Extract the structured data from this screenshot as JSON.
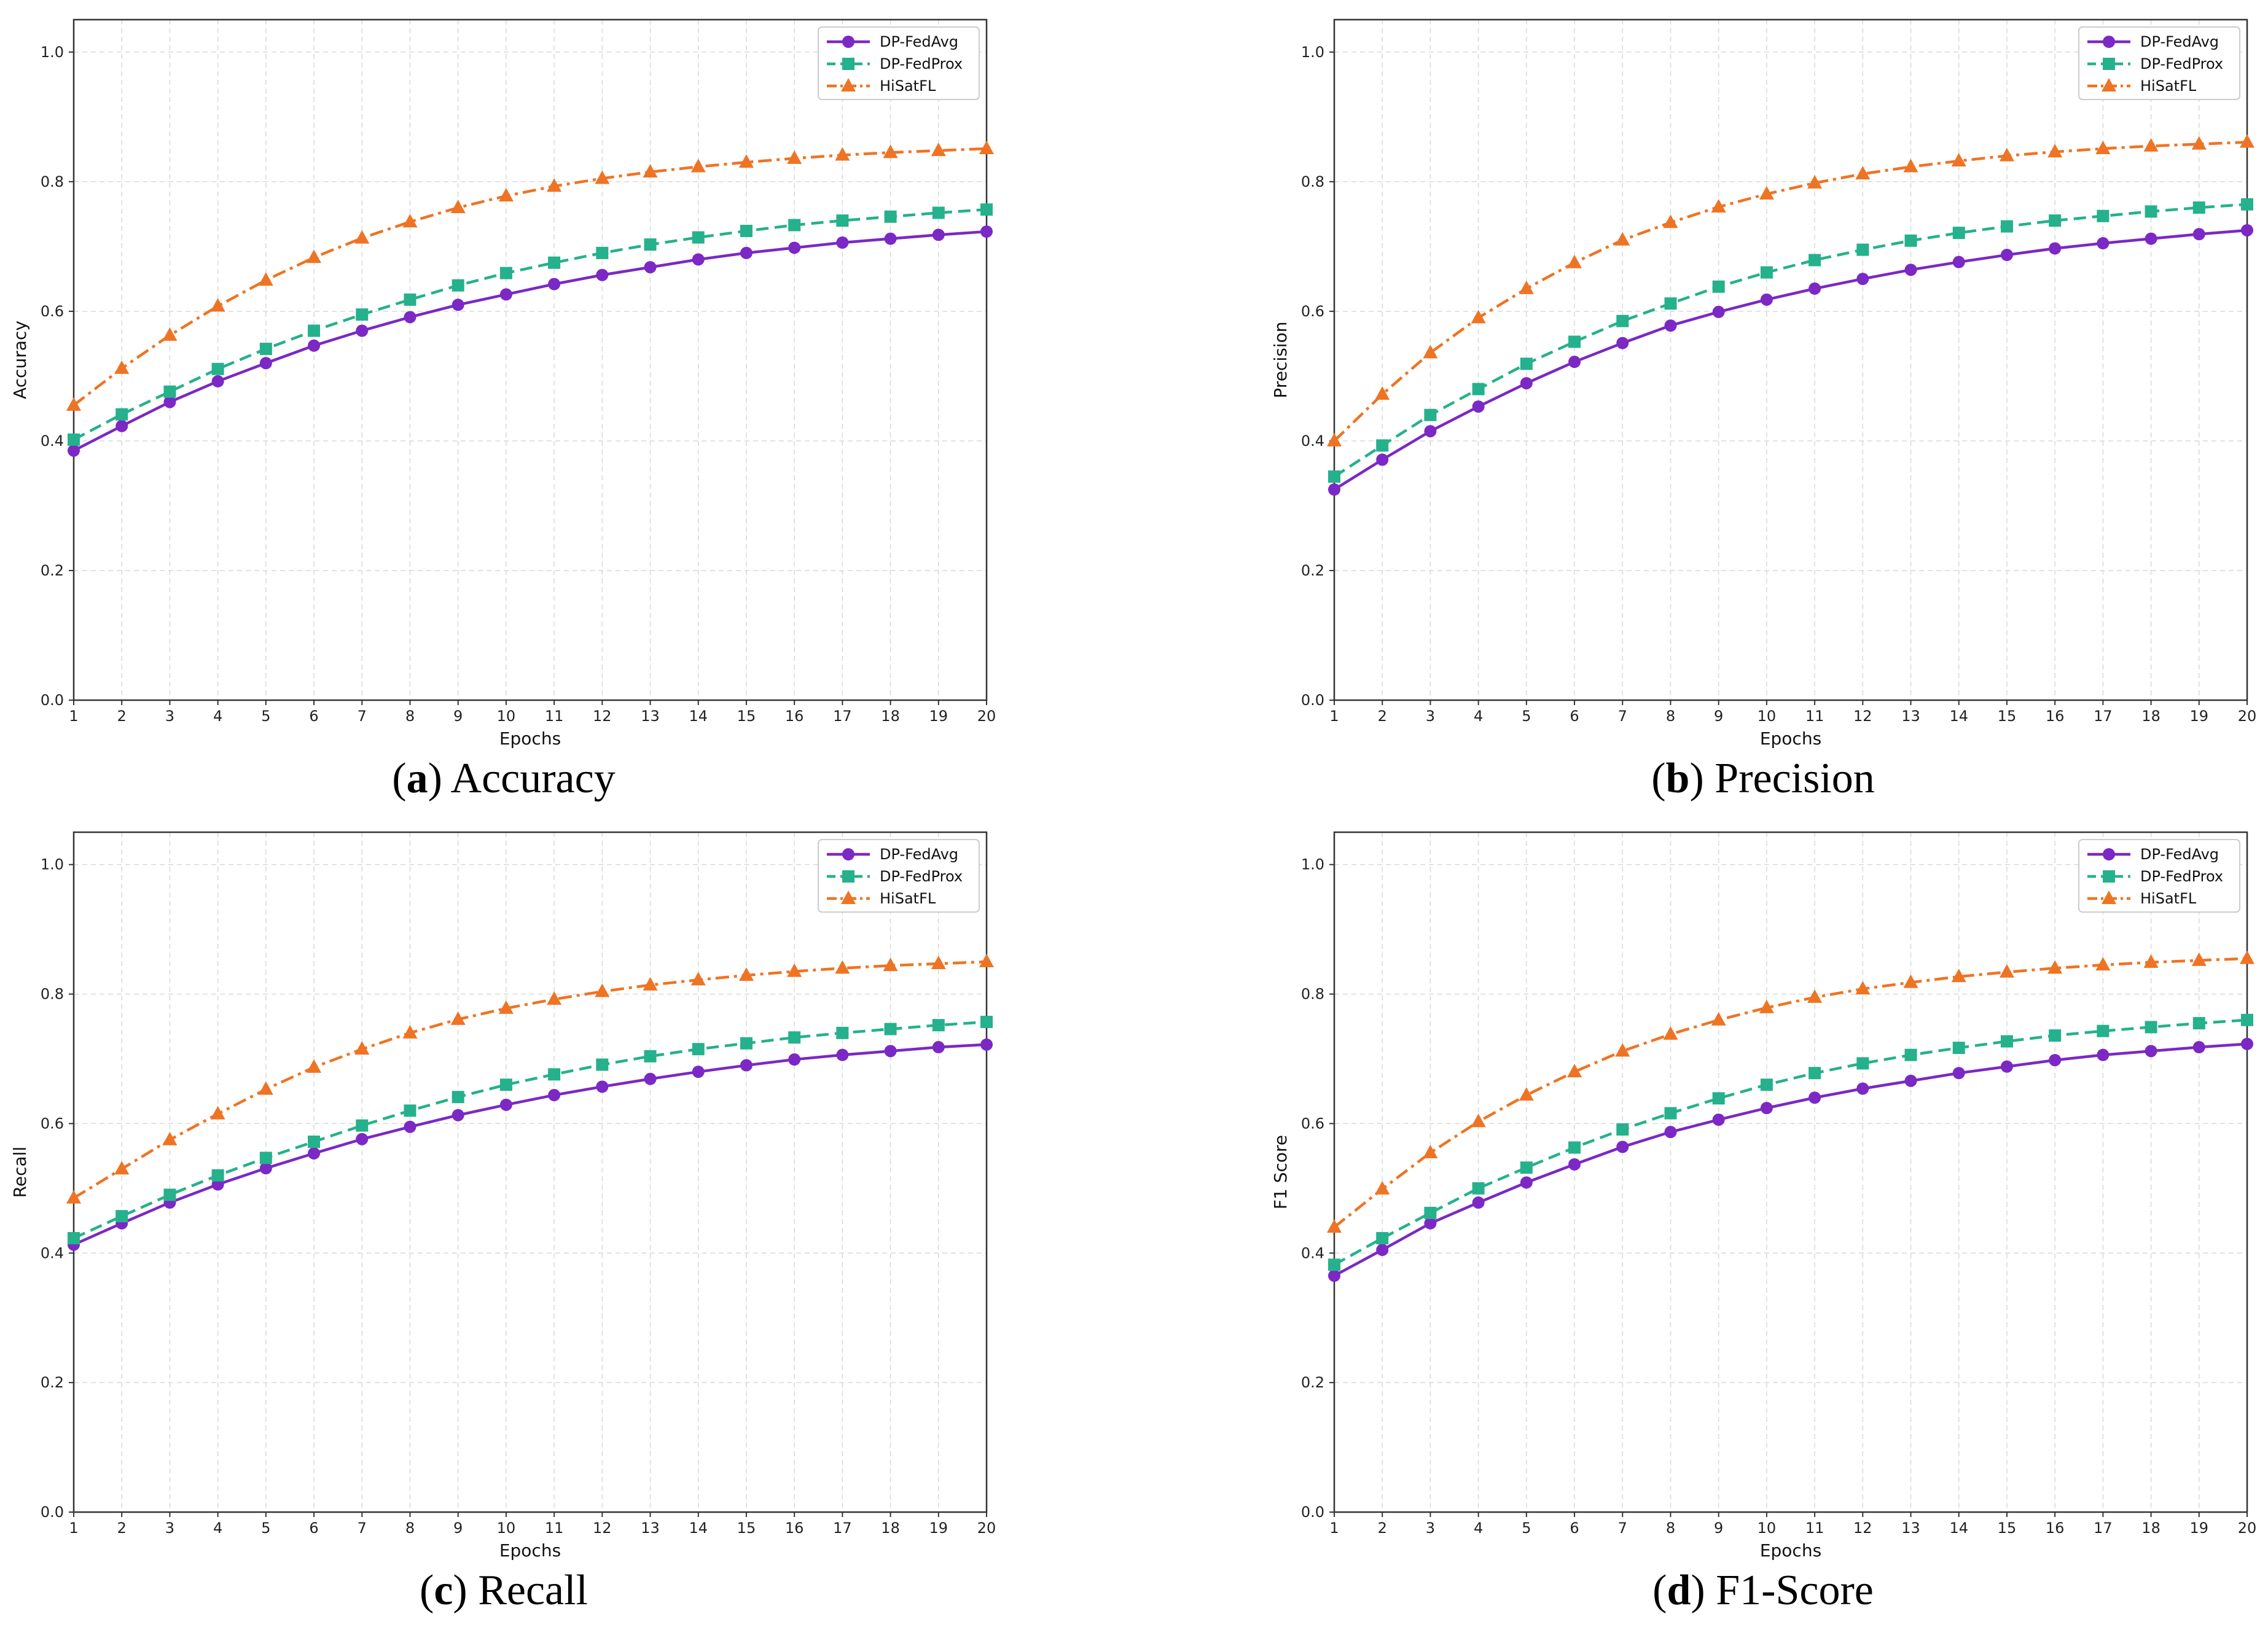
{
  "colors": {
    "DP-FedAvg": "#7b28c4",
    "DP-FedProx": "#25b18c",
    "HiSatFL": "#ee7424",
    "grid": "#d9d9d9",
    "axis": "#333333"
  },
  "chart_data": [
    {
      "type": "line",
      "caption_letter": "a",
      "caption_text": "Accuracy",
      "xlabel": "Epochs",
      "ylabel": "Accuracy",
      "x": [
        1,
        2,
        3,
        4,
        5,
        6,
        7,
        8,
        9,
        10,
        11,
        12,
        13,
        14,
        15,
        16,
        17,
        18,
        19,
        20
      ],
      "xlim": [
        1,
        20
      ],
      "ylim": [
        0.0,
        1.05
      ],
      "yticks": [
        "0.0",
        "0.2",
        "0.4",
        "0.6",
        "0.8",
        "1.0"
      ],
      "grid": true,
      "legend_position": "top-right",
      "series": [
        {
          "name": "DP-FedAvg",
          "marker": "circle",
          "line_style": "solid",
          "values": [
            0.385,
            0.423,
            0.46,
            0.492,
            0.52,
            0.547,
            0.57,
            0.591,
            0.61,
            0.626,
            0.642,
            0.656,
            0.668,
            0.68,
            0.69,
            0.698,
            0.706,
            0.712,
            0.718,
            0.723
          ]
        },
        {
          "name": "DP-FedProx",
          "marker": "square",
          "line_style": "dashed",
          "values": [
            0.402,
            0.441,
            0.476,
            0.511,
            0.542,
            0.57,
            0.595,
            0.618,
            0.64,
            0.659,
            0.675,
            0.69,
            0.703,
            0.714,
            0.724,
            0.733,
            0.74,
            0.746,
            0.752,
            0.757
          ]
        },
        {
          "name": "HiSatFL",
          "marker": "triangle",
          "line_style": "dashdot",
          "values": [
            0.455,
            0.512,
            0.563,
            0.608,
            0.648,
            0.683,
            0.713,
            0.738,
            0.76,
            0.778,
            0.793,
            0.805,
            0.815,
            0.823,
            0.83,
            0.836,
            0.841,
            0.845,
            0.848,
            0.851
          ]
        }
      ]
    },
    {
      "type": "line",
      "caption_letter": "b",
      "caption_text": "Precision",
      "xlabel": "Epochs",
      "ylabel": "Precision",
      "x": [
        1,
        2,
        3,
        4,
        5,
        6,
        7,
        8,
        9,
        10,
        11,
        12,
        13,
        14,
        15,
        16,
        17,
        18,
        19,
        20
      ],
      "xlim": [
        1,
        20
      ],
      "ylim": [
        0.0,
        1.05
      ],
      "yticks": [
        "0.0",
        "0.2",
        "0.4",
        "0.6",
        "0.8",
        "1.0"
      ],
      "grid": true,
      "legend_position": "top-right",
      "series": [
        {
          "name": "DP-FedAvg",
          "marker": "circle",
          "line_style": "solid",
          "values": [
            0.325,
            0.371,
            0.415,
            0.453,
            0.489,
            0.522,
            0.551,
            0.578,
            0.599,
            0.618,
            0.635,
            0.65,
            0.664,
            0.676,
            0.687,
            0.697,
            0.705,
            0.712,
            0.719,
            0.725
          ]
        },
        {
          "name": "DP-FedProx",
          "marker": "square",
          "line_style": "dashed",
          "values": [
            0.345,
            0.393,
            0.44,
            0.48,
            0.519,
            0.553,
            0.585,
            0.612,
            0.638,
            0.66,
            0.679,
            0.695,
            0.709,
            0.721,
            0.731,
            0.74,
            0.747,
            0.754,
            0.76,
            0.765
          ]
        },
        {
          "name": "HiSatFL",
          "marker": "triangle",
          "line_style": "dashdot",
          "values": [
            0.4,
            0.472,
            0.536,
            0.59,
            0.635,
            0.675,
            0.71,
            0.737,
            0.761,
            0.781,
            0.798,
            0.812,
            0.823,
            0.832,
            0.84,
            0.846,
            0.851,
            0.855,
            0.858,
            0.861
          ]
        }
      ]
    },
    {
      "type": "line",
      "caption_letter": "c",
      "caption_text": "Recall",
      "xlabel": "Epochs",
      "ylabel": "Recall",
      "x": [
        1,
        2,
        3,
        4,
        5,
        6,
        7,
        8,
        9,
        10,
        11,
        12,
        13,
        14,
        15,
        16,
        17,
        18,
        19,
        20
      ],
      "xlim": [
        1,
        20
      ],
      "ylim": [
        0.0,
        1.05
      ],
      "yticks": [
        "0.0",
        "0.2",
        "0.4",
        "0.6",
        "0.8",
        "1.0"
      ],
      "grid": true,
      "legend_position": "top-right",
      "series": [
        {
          "name": "DP-FedAvg",
          "marker": "circle",
          "line_style": "solid",
          "values": [
            0.413,
            0.446,
            0.478,
            0.506,
            0.531,
            0.554,
            0.576,
            0.595,
            0.613,
            0.629,
            0.644,
            0.657,
            0.669,
            0.68,
            0.69,
            0.699,
            0.706,
            0.712,
            0.718,
            0.722
          ]
        },
        {
          "name": "DP-FedProx",
          "marker": "square",
          "line_style": "dashed",
          "values": [
            0.423,
            0.457,
            0.49,
            0.52,
            0.547,
            0.572,
            0.597,
            0.62,
            0.641,
            0.66,
            0.676,
            0.691,
            0.704,
            0.715,
            0.724,
            0.733,
            0.74,
            0.746,
            0.752,
            0.757
          ]
        },
        {
          "name": "HiSatFL",
          "marker": "triangle",
          "line_style": "dashdot",
          "values": [
            0.485,
            0.53,
            0.575,
            0.615,
            0.653,
            0.687,
            0.715,
            0.74,
            0.761,
            0.778,
            0.792,
            0.804,
            0.814,
            0.822,
            0.829,
            0.835,
            0.84,
            0.844,
            0.847,
            0.85
          ]
        }
      ]
    },
    {
      "type": "line",
      "caption_letter": "d",
      "caption_text": "F1-Score",
      "xlabel": "Epochs",
      "ylabel": "F1 Score",
      "x": [
        1,
        2,
        3,
        4,
        5,
        6,
        7,
        8,
        9,
        10,
        11,
        12,
        13,
        14,
        15,
        16,
        17,
        18,
        19,
        20
      ],
      "xlim": [
        1,
        20
      ],
      "ylim": [
        0.0,
        1.05
      ],
      "yticks": [
        "0.0",
        "0.2",
        "0.4",
        "0.6",
        "0.8",
        "1.0"
      ],
      "grid": true,
      "legend_position": "top-right",
      "series": [
        {
          "name": "DP-FedAvg",
          "marker": "circle",
          "line_style": "solid",
          "values": [
            0.365,
            0.405,
            0.446,
            0.478,
            0.509,
            0.537,
            0.564,
            0.587,
            0.606,
            0.624,
            0.64,
            0.654,
            0.666,
            0.678,
            0.688,
            0.698,
            0.706,
            0.712,
            0.718,
            0.723
          ]
        },
        {
          "name": "DP-FedProx",
          "marker": "square",
          "line_style": "dashed",
          "values": [
            0.382,
            0.423,
            0.462,
            0.5,
            0.532,
            0.563,
            0.591,
            0.616,
            0.639,
            0.66,
            0.678,
            0.693,
            0.706,
            0.717,
            0.727,
            0.736,
            0.743,
            0.749,
            0.755,
            0.76
          ]
        },
        {
          "name": "HiSatFL",
          "marker": "triangle",
          "line_style": "dashdot",
          "values": [
            0.44,
            0.499,
            0.555,
            0.603,
            0.644,
            0.68,
            0.712,
            0.738,
            0.76,
            0.779,
            0.795,
            0.808,
            0.818,
            0.827,
            0.834,
            0.84,
            0.845,
            0.849,
            0.852,
            0.855
          ]
        }
      ]
    }
  ]
}
